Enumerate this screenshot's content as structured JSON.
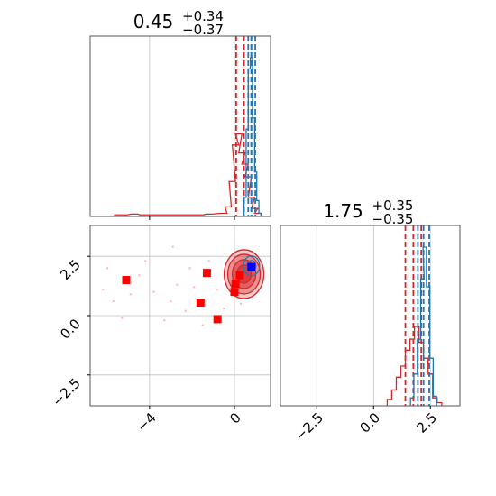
{
  "colors": {
    "red": "#d62728",
    "blue": "#1f77b4",
    "marker_red": "#ff0000",
    "marker_blue": "#0000ff",
    "grid": "#c0c0c0",
    "pink_points": "#f4a7b9"
  },
  "chart_data": [
    {
      "panel": "top-left",
      "type": "histogram",
      "title": {
        "base": "0.45",
        "sup": "+0.34",
        "sub": "−0.37"
      },
      "xlim": [
        -6.8,
        1.7
      ],
      "x_ticks": [
        -4,
        0
      ],
      "series": [
        {
          "color": "#d62728",
          "bins": [
            [
              -5.5,
              0.01
            ],
            [
              -5.2,
              0.01
            ],
            [
              -4.7,
              0.015
            ],
            [
              -4.3,
              0.01
            ],
            [
              -1.6,
              0.01
            ],
            [
              -1.2,
              0.015
            ],
            [
              -0.5,
              0.02
            ],
            [
              -0.3,
              0.06
            ],
            [
              -0.1,
              0.22
            ],
            [
              0.05,
              0.45
            ],
            [
              0.2,
              0.52
            ],
            [
              0.35,
              0.4
            ],
            [
              0.5,
              0.33
            ],
            [
              0.65,
              0.25
            ],
            [
              0.8,
              0.12
            ],
            [
              0.95,
              0.05
            ],
            [
              1.1,
              0.02
            ]
          ],
          "quantile_lines": [
            0.08,
            0.45,
            0.79
          ]
        },
        {
          "color": "#1f77b4",
          "bins": [
            [
              0.5,
              0.12
            ],
            [
              0.6,
              0.55
            ],
            [
              0.7,
              0.93
            ],
            [
              0.8,
              1.0
            ],
            [
              0.9,
              0.62
            ],
            [
              1.0,
              0.28
            ],
            [
              1.1,
              0.1
            ],
            [
              1.2,
              0.02
            ]
          ],
          "quantile_lines": [
            0.65,
            0.8,
            0.98
          ]
        }
      ]
    },
    {
      "panel": "bottom-left",
      "type": "scatter",
      "xlim": [
        -6.8,
        1.7
      ],
      "ylim": [
        -3.8,
        3.8
      ],
      "x_ticks": [
        -4,
        0
      ],
      "y_ticks": [
        -2.5,
        0.0,
        2.5
      ],
      "y_tick_labels": [
        "−2.5",
        "0.0",
        "2.5"
      ],
      "x_tick_labels": [
        "−4",
        "0"
      ],
      "contour_center_red": [
        0.45,
        1.75
      ],
      "contour_center_blue": [
        0.8,
        2.1
      ],
      "red_markers": [
        [
          -5.1,
          1.5
        ],
        [
          -1.3,
          1.8
        ],
        [
          -1.6,
          0.55
        ],
        [
          -0.8,
          -0.15
        ],
        [
          0.0,
          1.0
        ],
        [
          0.05,
          1.35
        ],
        [
          0.25,
          1.7
        ]
      ],
      "blue_marker": [
        0.8,
        2.05
      ],
      "background_points": [
        [
          -6.2,
          1.1
        ],
        [
          -5.7,
          0.6
        ],
        [
          -4.9,
          0.9
        ],
        [
          -4.2,
          2.3
        ],
        [
          -3.8,
          1.0
        ],
        [
          -2.9,
          2.9
        ],
        [
          -2.7,
          1.3
        ],
        [
          -2.3,
          0.2
        ],
        [
          -1.9,
          1.2
        ],
        [
          -1.2,
          2.3
        ],
        [
          -0.8,
          1.1
        ],
        [
          -0.5,
          0.3
        ],
        [
          -3.3,
          -0.2
        ],
        [
          -5.3,
          -0.1
        ],
        [
          -6.0,
          2.0
        ],
        [
          -4.5,
          1.7
        ],
        [
          -3.0,
          0.6
        ],
        [
          -2.1,
          2.0
        ],
        [
          -1.5,
          -0.4
        ],
        [
          0.3,
          0.5
        ]
      ]
    },
    {
      "panel": "bottom-right",
      "type": "histogram",
      "title": {
        "base": "1.75",
        "sup": "+0.35",
        "sub": "−0.35"
      },
      "xlim": [
        -4.1,
        3.8
      ],
      "x_ticks": [
        -2.5,
        0.0,
        2.5
      ],
      "x_tick_labels": [
        "−2.5",
        "0.0",
        "2.5"
      ],
      "series": [
        {
          "color": "#d62728",
          "bins": [
            [
              0.7,
              0.04
            ],
            [
              0.9,
              0.1
            ],
            [
              1.1,
              0.18
            ],
            [
              1.3,
              0.25
            ],
            [
              1.5,
              0.35
            ],
            [
              1.7,
              0.42
            ],
            [
              1.9,
              0.5
            ],
            [
              2.1,
              0.4
            ],
            [
              2.3,
              0.3
            ],
            [
              2.5,
              0.2
            ],
            [
              2.7,
              0.05
            ],
            [
              2.9,
              0.02
            ]
          ],
          "quantile_lines": [
            1.4,
            1.75,
            2.1
          ]
        },
        {
          "color": "#1f77b4",
          "bins": [
            [
              1.7,
              0.05
            ],
            [
              1.85,
              0.2
            ],
            [
              2.0,
              0.42
            ],
            [
              2.15,
              0.8
            ],
            [
              2.25,
              1.0
            ],
            [
              2.4,
              0.75
            ],
            [
              2.55,
              0.3
            ],
            [
              2.7,
              0.06
            ]
          ],
          "quantile_lines": [
            1.95,
            2.2,
            2.45
          ]
        }
      ]
    }
  ]
}
